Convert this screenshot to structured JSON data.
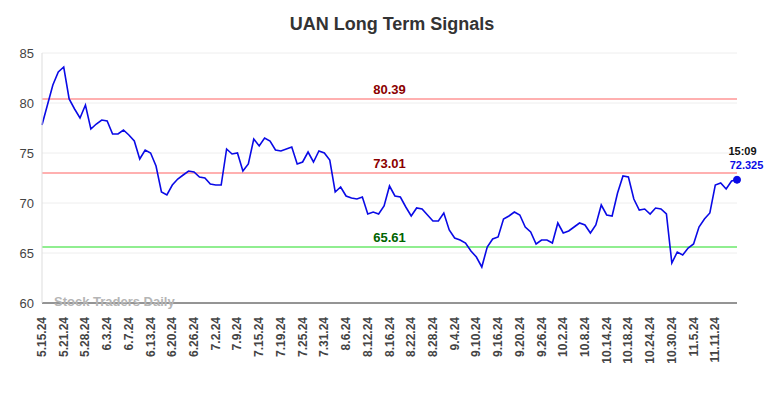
{
  "chart_data": {
    "type": "line",
    "title": "UAN Long Term Signals",
    "watermark": "Stock Traders Daily",
    "categories": [
      "5.15.24",
      null,
      null,
      null,
      "5.21.24",
      null,
      null,
      null,
      "5.28.24",
      null,
      null,
      null,
      "6.3.24",
      null,
      null,
      null,
      "6.7.24",
      null,
      null,
      null,
      "6.13.24",
      null,
      null,
      null,
      "6.20.24",
      null,
      null,
      null,
      "6.26.24",
      null,
      null,
      null,
      "7.2.24",
      null,
      null,
      null,
      "7.9.24",
      null,
      null,
      null,
      "7.15.24",
      null,
      null,
      null,
      "7.19.24",
      null,
      null,
      null,
      "7.25.24",
      null,
      null,
      null,
      "7.31.24",
      null,
      null,
      null,
      "8.6.24",
      null,
      null,
      null,
      "8.12.24",
      null,
      null,
      null,
      "8.16.24",
      null,
      null,
      null,
      "8.22.24",
      null,
      null,
      null,
      "8.28.24",
      null,
      null,
      null,
      "9.4.24",
      null,
      null,
      null,
      "9.10.24",
      null,
      null,
      null,
      "9.16.24",
      null,
      null,
      null,
      "9.20.24",
      null,
      null,
      null,
      "9.26.24",
      null,
      null,
      null,
      "10.2.24",
      null,
      null,
      null,
      "10.8.24",
      null,
      null,
      null,
      "10.14.24",
      null,
      null,
      null,
      "10.18.24",
      null,
      null,
      null,
      "10.24.24",
      null,
      null,
      null,
      "10.30.24",
      null,
      null,
      null,
      "11.5.24",
      null,
      null,
      null,
      "11.11.24",
      null,
      null,
      null,
      null
    ],
    "values": [
      77.8,
      79.8,
      81.8,
      83.1,
      83.6,
      80.4,
      79.4,
      78.5,
      79.8,
      77.4,
      77.9,
      78.3,
      78.2,
      76.9,
      76.9,
      77.3,
      76.8,
      76.2,
      74.4,
      75.3,
      75.0,
      73.7,
      71.1,
      70.8,
      71.8,
      72.4,
      72.8,
      73.2,
      73.1,
      72.6,
      72.5,
      71.9,
      71.8,
      71.8,
      75.4,
      74.9,
      75.0,
      73.2,
      73.9,
      76.4,
      75.7,
      76.5,
      76.2,
      75.3,
      75.2,
      75.4,
      75.6,
      73.9,
      74.1,
      75.1,
      74.1,
      75.2,
      75.0,
      74.3,
      71.1,
      71.6,
      70.7,
      70.5,
      70.4,
      70.6,
      68.9,
      69.1,
      68.9,
      69.7,
      71.7,
      70.7,
      70.6,
      69.6,
      68.7,
      69.5,
      69.4,
      68.8,
      68.2,
      68.2,
      69.0,
      67.3,
      66.5,
      66.3,
      66.0,
      65.2,
      64.6,
      63.6,
      65.6,
      66.4,
      66.6,
      68.4,
      68.7,
      69.1,
      68.8,
      67.6,
      67.1,
      65.9,
      66.3,
      66.3,
      66.0,
      68.0,
      67.0,
      67.2,
      67.6,
      68.0,
      67.8,
      67.0,
      67.8,
      69.8,
      68.8,
      68.7,
      71.0,
      72.7,
      72.6,
      70.4,
      69.3,
      69.4,
      68.9,
      69.5,
      69.4,
      68.9,
      64.0,
      65.1,
      64.8,
      65.5,
      65.9,
      67.6,
      68.4,
      69.0,
      71.8,
      72.0,
      71.4,
      72.2,
      72.325
    ],
    "color": "#0a0ae6",
    "ylim": [
      60,
      85
    ],
    "yticks": [
      60,
      65,
      70,
      75,
      80,
      85
    ],
    "grid": true,
    "reference_lines": [
      {
        "value": 80.39,
        "color": "#ffb0b0",
        "label_color": "#8b0000"
      },
      {
        "value": 73.01,
        "color": "#ffb0b0",
        "label_color": "#8b0000"
      },
      {
        "value": 65.61,
        "color": "#90ee90",
        "label_color": "#006400"
      }
    ],
    "annotations": [
      {
        "text": "15:09"
      }
    ]
  }
}
